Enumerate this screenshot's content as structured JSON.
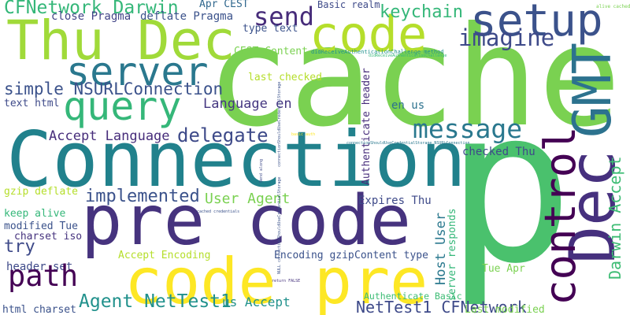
{
  "word_cloud": {
    "words": [
      {
        "text": "cache",
        "color": "#7ad151"
      },
      {
        "text": "Connection",
        "color": "#21818c"
      },
      {
        "text": "p",
        "color": "#4ac16d"
      },
      {
        "text": "pre code",
        "color": "#46337e"
      },
      {
        "text": "code pre",
        "color": "#fde725"
      },
      {
        "text": "Thu Dec",
        "color": "#a0da39"
      },
      {
        "text": "server",
        "color": "#2a788e"
      },
      {
        "text": "query",
        "color": "#35b779"
      },
      {
        "text": "code",
        "color": "#b5de2b"
      },
      {
        "text": "setup",
        "color": "#3b528b"
      },
      {
        "text": "send",
        "color": "#472c7a"
      },
      {
        "text": "keychain",
        "color": "#35b779"
      },
      {
        "text": "imagine",
        "color": "#3e4a89"
      },
      {
        "text": "GMT",
        "color": "#2c728e"
      },
      {
        "text": "Dec",
        "color": "#46307e"
      },
      {
        "text": "control",
        "color": "#440154"
      },
      {
        "text": "message",
        "color": "#2a788e"
      },
      {
        "text": "Darwin Accept",
        "color": "#3dbc74"
      },
      {
        "text": "delegate",
        "color": "#3e4a89"
      },
      {
        "text": "Language en",
        "color": "#453781"
      },
      {
        "text": "simple NSURLConnection",
        "color": "#3b528b"
      },
      {
        "text": "text html",
        "color": "#3e4a89"
      },
      {
        "text": "CFNetwork Darwin",
        "color": "#35b779"
      },
      {
        "text": "close Pragma",
        "color": "#414487"
      },
      {
        "text": "deflate Pragma",
        "color": "#3b528b"
      },
      {
        "text": "Apr CEST",
        "color": "#31688e"
      },
      {
        "text": "type text",
        "color": "#3b528b"
      },
      {
        "text": "Basic realm",
        "color": "#3e4a89"
      },
      {
        "text": "CEST Content",
        "color": "#7ad151"
      },
      {
        "text": "didReceiveAuthenticationChallenge method",
        "color": "#21918c"
      },
      {
        "text": "last checked",
        "color": "#b5de2b"
      },
      {
        "text": "Authenticate header",
        "color": "#472d7b"
      },
      {
        "text": "en us",
        "color": "#2c728e"
      },
      {
        "text": "Accept Language",
        "color": "#472d7b"
      },
      {
        "text": "implemented",
        "color": "#3b528b"
      },
      {
        "text": "User Agent",
        "color": "#7ad151"
      },
      {
        "text": "Expires Thu",
        "color": "#3e4a89"
      },
      {
        "text": "checked Thu",
        "color": "#3e4a89"
      },
      {
        "text": "Host User",
        "color": "#2a788e"
      },
      {
        "text": "server responds",
        "color": "#35b779"
      },
      {
        "text": "gzip deflate",
        "color": "#b5de2b"
      },
      {
        "text": "keep alive",
        "color": "#35b779"
      },
      {
        "text": "modified Tue",
        "color": "#3b528b"
      },
      {
        "text": "charset iso",
        "color": "#46337e"
      },
      {
        "text": "try",
        "color": "#3e4a89"
      },
      {
        "text": "header set",
        "color": "#3e4a89"
      },
      {
        "text": "html charset",
        "color": "#3b528b"
      },
      {
        "text": "Agent NetTest1",
        "color": "#21918c"
      },
      {
        "text": "us Accept",
        "color": "#21918c"
      },
      {
        "text": "Accept Encoding",
        "color": "#b5de2b"
      },
      {
        "text": "Encoding gzip",
        "color": "#3b528b"
      },
      {
        "text": "Content type",
        "color": "#3b528b"
      },
      {
        "text": "NetTest1 CFNetwork",
        "color": "#3e4a89"
      },
      {
        "text": "Authenticate Basic",
        "color": "#3dbc74"
      },
      {
        "text": "Last modified",
        "color": "#7ad151"
      },
      {
        "text": "Tue Apr",
        "color": "#7ad151"
      },
      {
        "text": "path",
        "color": "#440154"
      },
      {
        "text": "alive cached",
        "color": "#7ad151"
      },
      {
        "text": "connectionShouldUseCredentialStorage NSURLConnection",
        "color": "#2a788e"
      },
      {
        "text": "NULL connectionShouldUseCredentialStorage",
        "color": "#3b528b"
      },
      {
        "text": "return FALSE",
        "color": "#46337e"
      },
      {
        "text": "cached credentials",
        "color": "#3b528b"
      },
      {
        "text": "Send along",
        "color": "#3e4a89"
      },
      {
        "text": "basic auth",
        "color": "#fde725"
      },
      {
        "text": "didReceiveAuthenticationChallenge",
        "color": "#35b779"
      },
      {
        "text": "connectionShouldUseCredentialStorage",
        "color": "#3b528b"
      }
    ]
  }
}
